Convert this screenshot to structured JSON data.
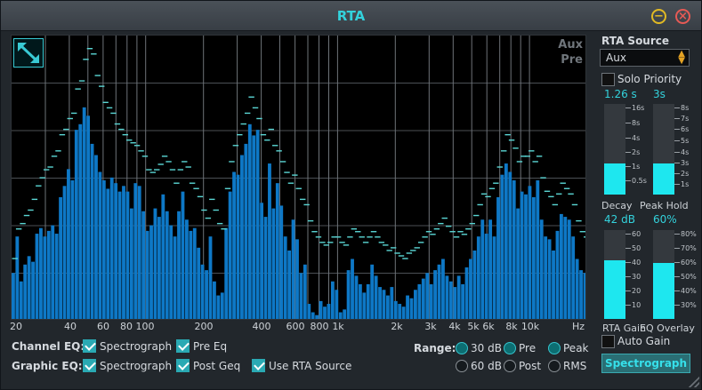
{
  "window": {
    "title": "RTA",
    "minimize_icon": "minus-icon",
    "close_icon": "close-icon"
  },
  "plot": {
    "source_label": "Aux",
    "mode_label": "Pre",
    "expand_icon": "expand-arrows-icon",
    "x_ticks": [
      "20",
      "40",
      "60",
      "80",
      "100",
      "200",
      "400",
      "600",
      "800",
      "1k",
      "2k",
      "3k",
      "4k",
      "5k",
      "6k",
      "8k",
      "10k",
      "Hz"
    ],
    "colors": {
      "bar": "#0e78c6",
      "peak": "#5ad6d4",
      "grid": "#4b5055",
      "background": "#000000"
    }
  },
  "chart_data": {
    "type": "bar",
    "xlabel": "Hz",
    "x_scale": "log",
    "xlim": [
      20,
      20000
    ],
    "ylim": [
      0,
      1
    ],
    "bars": [
      0.17,
      0.3,
      0.14,
      0.2,
      0.23,
      0.21,
      0.31,
      0.33,
      0.3,
      0.32,
      0.34,
      0.31,
      0.44,
      0.48,
      0.54,
      0.5,
      0.68,
      0.7,
      0.76,
      0.73,
      0.63,
      0.59,
      0.53,
      0.5,
      0.47,
      0.51,
      0.49,
      0.46,
      0.48,
      0.46,
      0.4,
      0.49,
      0.48,
      0.39,
      0.32,
      0.34,
      0.4,
      0.37,
      0.45,
      0.39,
      0.34,
      0.3,
      0.39,
      0.46,
      0.36,
      0.32,
      0.33,
      0.26,
      0.2,
      0.18,
      0.3,
      0.14,
      0.09,
      0.1,
      0.33,
      0.46,
      0.53,
      0.52,
      0.59,
      0.63,
      0.7,
      0.66,
      0.68,
      0.42,
      0.37,
      0.56,
      0.4,
      0.49,
      0.41,
      0.3,
      0.25,
      0.36,
      0.29,
      0.17,
      0.2,
      0.06,
      0.03,
      0.02,
      0.07,
      0.05,
      0.06,
      0.14,
      0.11,
      0.03,
      0.04,
      0.18,
      0.22,
      0.16,
      0.13,
      0.1,
      0.13,
      0.2,
      0.16,
      0.12,
      0.11,
      0.09,
      0.12,
      0.07,
      0.06,
      0.05,
      0.09,
      0.08,
      0.11,
      0.13,
      0.15,
      0.17,
      0.13,
      0.18,
      0.2,
      0.22,
      0.16,
      0.14,
      0.12,
      0.16,
      0.13,
      0.19,
      0.22,
      0.25,
      0.3,
      0.36,
      0.31,
      0.36,
      0.3,
      0.44,
      0.52,
      0.56,
      0.53,
      0.5,
      0.4,
      0.46,
      0.45,
      0.48,
      0.44,
      0.5,
      0.36,
      0.3,
      0.29,
      0.25,
      0.32,
      0.38,
      0.37,
      0.36,
      0.3,
      0.22,
      0.18,
      0.17
    ],
    "peaks": [
      0.22,
      0.33,
      0.35,
      0.38,
      0.4,
      0.44,
      0.49,
      0.52,
      0.55,
      0.56,
      0.6,
      0.62,
      0.68,
      0.7,
      0.74,
      0.76,
      0.85,
      0.88,
      0.96,
      1.0,
      0.98,
      0.9,
      0.86,
      0.8,
      0.78,
      0.76,
      0.72,
      0.7,
      0.68,
      0.66,
      0.65,
      0.64,
      0.62,
      0.6,
      0.55,
      0.54,
      0.55,
      0.57,
      0.6,
      0.58,
      0.55,
      0.5,
      0.55,
      0.58,
      0.56,
      0.5,
      0.48,
      0.45,
      0.4,
      0.37,
      0.44,
      0.4,
      0.35,
      0.33,
      0.48,
      0.58,
      0.64,
      0.68,
      0.72,
      0.76,
      0.82,
      0.78,
      0.74,
      0.68,
      0.66,
      0.7,
      0.64,
      0.62,
      0.58,
      0.54,
      0.5,
      0.53,
      0.48,
      0.44,
      0.42,
      0.36,
      0.32,
      0.3,
      0.28,
      0.27,
      0.28,
      0.3,
      0.3,
      0.28,
      0.27,
      0.3,
      0.33,
      0.32,
      0.3,
      0.28,
      0.3,
      0.32,
      0.3,
      0.28,
      0.27,
      0.25,
      0.26,
      0.24,
      0.23,
      0.22,
      0.24,
      0.25,
      0.26,
      0.28,
      0.3,
      0.32,
      0.31,
      0.33,
      0.35,
      0.37,
      0.34,
      0.32,
      0.3,
      0.32,
      0.31,
      0.33,
      0.35,
      0.38,
      0.42,
      0.46,
      0.45,
      0.48,
      0.5,
      0.56,
      0.62,
      0.68,
      0.66,
      0.63,
      0.58,
      0.6,
      0.6,
      0.62,
      0.58,
      0.6,
      0.52,
      0.47,
      0.45,
      0.42,
      0.46,
      0.5,
      0.48,
      0.46,
      0.42,
      0.36,
      0.32,
      0.3
    ]
  },
  "options": {
    "channel_eq_label": "Channel EQ:",
    "graphic_eq_label": "Graphic EQ:",
    "channel_spectrograph": {
      "label": "Spectrograph",
      "checked": true
    },
    "channel_pre_eq": {
      "label": "Pre Eq",
      "checked": true
    },
    "graphic_spectrograph": {
      "label": "Spectrograph",
      "checked": true
    },
    "graphic_post_geq": {
      "label": "Post Geq",
      "checked": true
    },
    "use_rta_source": {
      "label": "Use RTA Source",
      "checked": true
    }
  },
  "range": {
    "label": "Range:",
    "db_options": [
      "30 dB",
      "60 dB"
    ],
    "db_selected": "30 dB",
    "tap_options": [
      "Pre",
      "Post"
    ],
    "tap_selected": "Pre",
    "detect_options": [
      "Peak",
      "RMS"
    ],
    "detect_selected": "Peak"
  },
  "right_panel": {
    "rta_source_label": "RTA Source",
    "source_value": "Aux",
    "solo_priority": {
      "label": "Solo Priority",
      "checked": false
    },
    "decay": {
      "value": "1.26 s",
      "label": "Decay",
      "ticks": [
        "16s",
        "8s",
        "4s",
        "2s",
        "1s",
        "0.5s"
      ],
      "level": 0.34
    },
    "peak_hold": {
      "value": "3s",
      "label": "Peak Hold",
      "ticks": [
        "8s",
        "7s",
        "6s",
        "5s",
        "4s",
        "3s",
        "2s",
        "1s"
      ],
      "level": 0.34
    },
    "rta_gain": {
      "value": "42 dB",
      "label": "RTA Gain",
      "ticks": [
        "60",
        "50",
        "40",
        "30",
        "20",
        "10"
      ],
      "level": 0.66
    },
    "eq_overlay": {
      "value": "60%",
      "label": "EQ Overlay",
      "ticks": [
        "80%",
        "70%",
        "60%",
        "50%",
        "40%",
        "30%"
      ],
      "level": 0.63
    },
    "auto_gain": {
      "label": "Auto Gain",
      "checked": false
    },
    "spectrograph_button": "Spectrograph"
  }
}
